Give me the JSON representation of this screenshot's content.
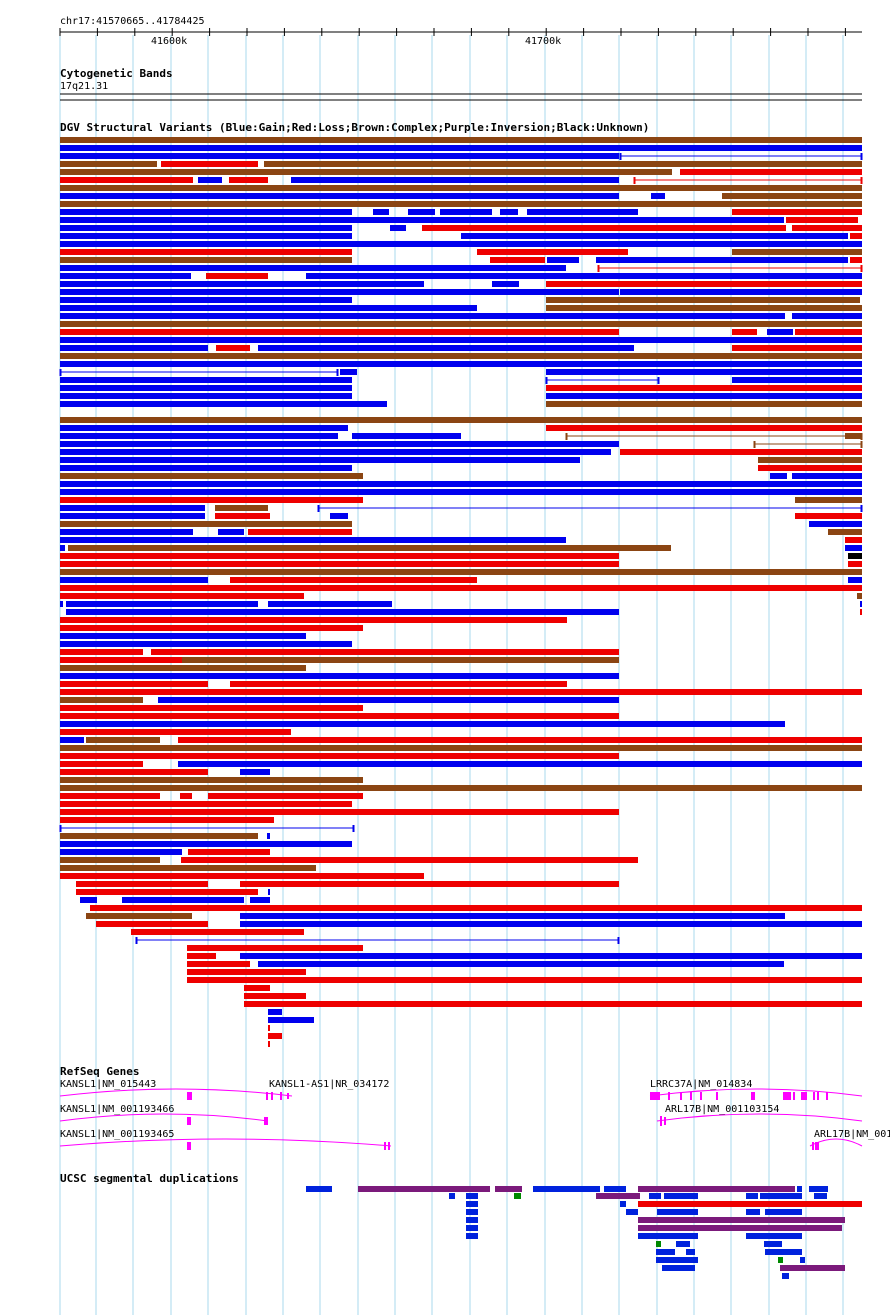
{
  "region": {
    "locus": "chr17:41570665..41784425",
    "ticks": [
      "41600k",
      "41700k"
    ]
  },
  "tracks": {
    "cytoband": {
      "title": "Cytogenetic Bands",
      "band": "17q21.31"
    },
    "dgv": {
      "title": "DGV Structural Variants (Blue:Gain;Red:Loss;Brown:Complex;Purple:Inversion;Black:Unknown)"
    },
    "refseq": {
      "title": "RefSeq Genes",
      "genes": [
        "KANSL1|NM_015443",
        "KANSL1-AS1|NR_034172",
        "LRRC37A|NM_014834",
        "KANSL1|NM_001193466",
        "ARL17B|NM_001103154",
        "KANSL1|NM_001193465",
        "ARL17B|NM_001"
      ]
    },
    "segdup": {
      "title": "UCSC segmental duplications"
    }
  },
  "colors": {
    "gain": "#0000ee",
    "loss": "#ee0000",
    "complex": "#8b4513",
    "inversion": "#800080",
    "unknown": "#000000",
    "gene": "#ff00ff",
    "segdup_blue": "#0022dd",
    "segdup_purple": "#7b1a7b",
    "segdup_green": "#008800",
    "grid": "#a8d8ee"
  }
}
